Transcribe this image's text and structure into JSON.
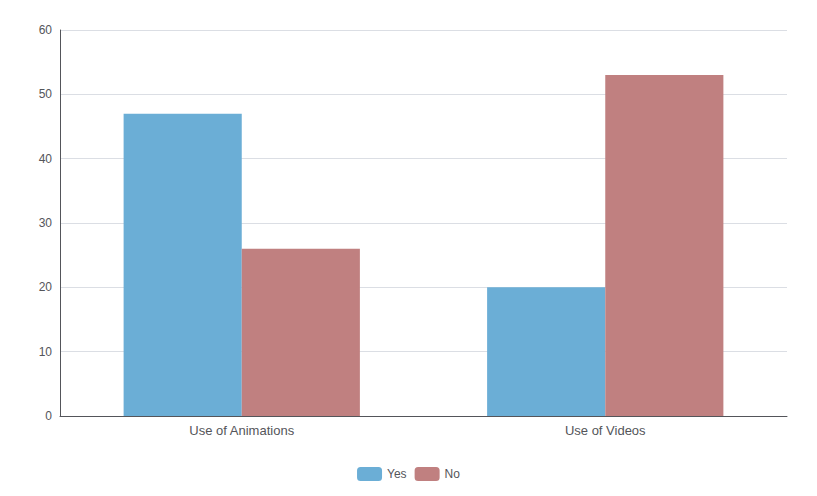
{
  "chart_data": {
    "type": "bar",
    "categories": [
      "Use of Animations",
      "Use of Videos"
    ],
    "series": [
      {
        "name": "Yes",
        "color": "#6baed6",
        "values": [
          47,
          20
        ]
      },
      {
        "name": "No",
        "color": "#c08080",
        "values": [
          26,
          53
        ]
      }
    ],
    "ylim": [
      0,
      60
    ],
    "yticks": [
      0,
      10,
      20,
      30,
      40,
      50,
      60
    ],
    "grid": true,
    "legend": "bottom"
  }
}
